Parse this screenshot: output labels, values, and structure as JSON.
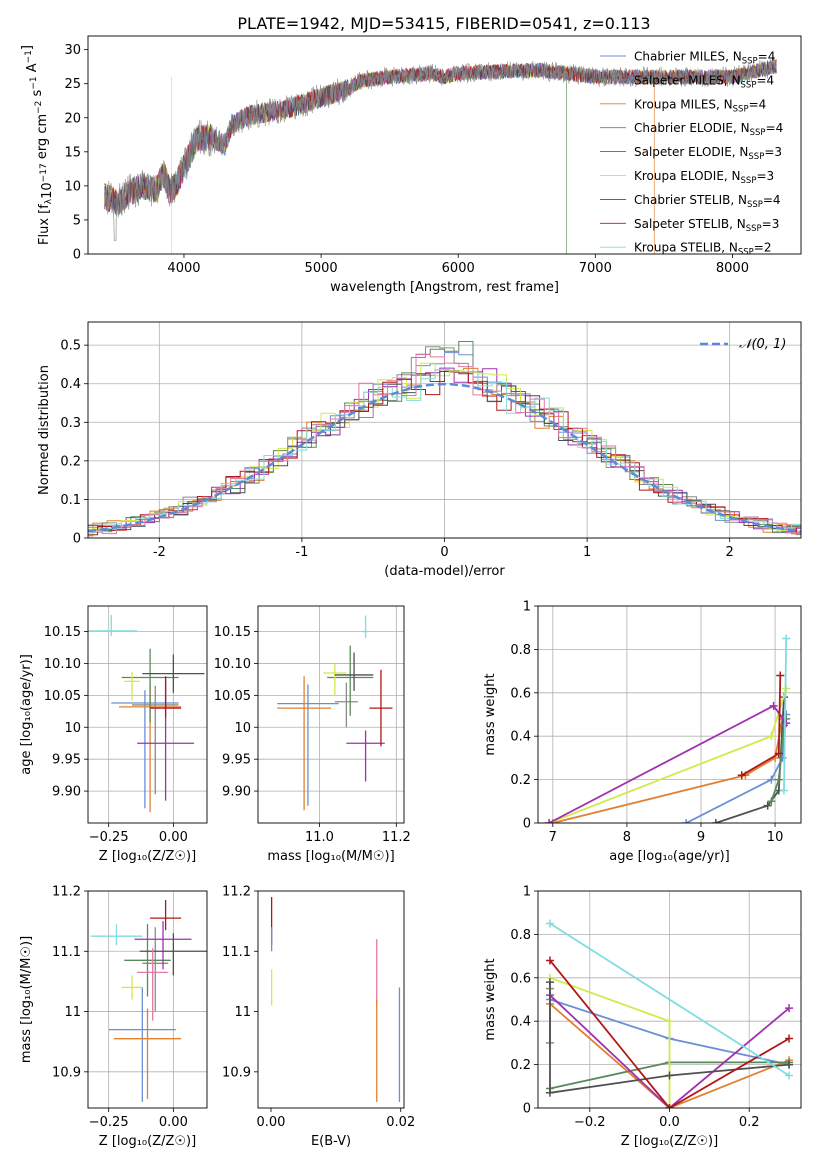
{
  "figure": {
    "title": "PLATE=1942, MJD=53415, FIBERID=0541, z=0.113"
  },
  "series_legend": [
    {
      "name": "Chabrier MILES, N$_{SSP}$=4",
      "base": "Chabrier MILES, N",
      "sub": "SSP",
      "tail": "=4",
      "color": "#6b8fd6"
    },
    {
      "name": "Salpeter MILES, N$_{SSP}$=4",
      "base": "Salpeter MILES, N",
      "sub": "SSP",
      "tail": "=4",
      "color": "#8a8a8a"
    },
    {
      "name": "Kroupa MILES, N$_{SSP}$=4",
      "base": "Kroupa MILES, N",
      "sub": "SSP",
      "tail": "=4",
      "color": "#e08030"
    },
    {
      "name": "Chabrier ELODIE, N$_{SSP}$=4",
      "base": "Chabrier ELODIE, N",
      "sub": "SSP",
      "tail": "=4",
      "color": "#5a8a5a"
    },
    {
      "name": "Salpeter ELODIE, N$_{SSP}$=3",
      "base": "Salpeter ELODIE, N",
      "sub": "SSP",
      "tail": "=3",
      "color": "#a030b0"
    },
    {
      "name": "Kroupa ELODIE, N$_{SSP}$=3",
      "base": "Kroupa ELODIE, N",
      "sub": "SSP",
      "tail": "=3",
      "color": "#d4e84a"
    },
    {
      "name": "Chabrier STELIB, N$_{SSP}$=4",
      "base": "Chabrier STELIB, N",
      "sub": "SSP",
      "tail": "=4",
      "color": "#505050"
    },
    {
      "name": "Salpeter STELIB, N$_{SSP}$=3",
      "base": "Salpeter STELIB, N",
      "sub": "SSP",
      "tail": "=3",
      "color": "#b01818"
    },
    {
      "name": "Kroupa STELIB, N$_{SSP}$=2",
      "base": "Kroupa STELIB, N",
      "sub": "SSP",
      "tail": "=2",
      "color": "#80dce0"
    }
  ],
  "chart_data": [
    {
      "id": "spectrum",
      "type": "line",
      "xlabel": "wavelength [Angstrom, rest frame]",
      "ylabel_parts": [
        "Flux [f",
        "λ",
        "10",
        "−17",
        " erg cm",
        "−2",
        " s",
        "−1",
        " A",
        "−1",
        "]"
      ],
      "xlim": [
        3300,
        8500
      ],
      "ylim": [
        0,
        32
      ],
      "xticks": [
        4000,
        5000,
        6000,
        7000,
        8000
      ],
      "yticks": [
        0,
        5,
        10,
        15,
        20,
        25,
        30
      ],
      "spectrum_knots": [
        [
          3420,
          8.5
        ],
        [
          3520,
          7.5
        ],
        [
          3600,
          9
        ],
        [
          3700,
          10
        ],
        [
          3800,
          9.5
        ],
        [
          3850,
          12
        ],
        [
          3900,
          9
        ],
        [
          3960,
          11
        ],
        [
          4050,
          15
        ],
        [
          4100,
          17
        ],
        [
          4200,
          17
        ],
        [
          4300,
          16
        ],
        [
          4350,
          19
        ],
        [
          4500,
          20.5
        ],
        [
          4700,
          21
        ],
        [
          4861,
          22
        ],
        [
          5000,
          23
        ],
        [
          5175,
          24
        ],
        [
          5300,
          25.5
        ],
        [
          5500,
          26
        ],
        [
          5800,
          26.5
        ],
        [
          5893,
          26
        ],
        [
          6000,
          26.5
        ],
        [
          6300,
          26.8
        ],
        [
          6563,
          27
        ],
        [
          6800,
          26.5
        ],
        [
          7000,
          26
        ],
        [
          7500,
          26
        ],
        [
          8000,
          26
        ],
        [
          8300,
          27.5
        ]
      ],
      "spectrum_end": 8320,
      "drops": [
        {
          "x": 3530,
          "series": 2
        },
        {
          "x": 3910,
          "series": 5
        },
        {
          "x": 6790,
          "series": 3
        },
        {
          "x": 7430,
          "series": 2
        }
      ]
    },
    {
      "id": "residual-histogram",
      "type": "step",
      "xlabel": "(data-model)/error",
      "ylabel": "Normed distribution",
      "xlim": [
        -2.5,
        2.5
      ],
      "ylim": [
        0,
        0.56
      ],
      "xticks": [
        -2,
        -1,
        0,
        1,
        2
      ],
      "yticks": [
        0,
        0.1,
        0.2,
        0.3,
        0.4,
        0.5
      ],
      "grid": true,
      "bin_width": 0.1,
      "reference_curve": {
        "name": "N(0,1)",
        "label_main": "𝒩(0, 1)",
        "color": "#5b8bd8",
        "style": "dashed"
      },
      "legend_position": "upper right",
      "peak_values": [
        0.49,
        0.5,
        0.44,
        0.52,
        0.44,
        0.46,
        0.43,
        0.41,
        0.44
      ]
    },
    {
      "id": "age-vs-Z",
      "type": "errorbar",
      "xlabel": "Z [log₁₀(Z/Z☉)]",
      "ylabel": "age  [log₁₀(age/yr)]",
      "xlim": [
        -0.33,
        0.13
      ],
      "ylim": [
        9.85,
        10.19
      ],
      "xticks": [
        -0.25,
        0.0
      ],
      "xticklabels": [
        "−0.25",
        "0.00"
      ],
      "yticks": [
        9.9,
        9.95,
        10.0,
        10.05,
        10.1,
        10.15
      ],
      "grid": true,
      "points": [
        {
          "s": 0,
          "x": -0.11,
          "xerr": 0.13,
          "y": 10.038,
          "yerr": [
            0.165,
            0.02
          ]
        },
        {
          "s": 1,
          "x": -0.07,
          "xerr": 0.09,
          "y": 10.035,
          "yerr": [
            0.14,
            0.03
          ]
        },
        {
          "s": 2,
          "x": -0.09,
          "xerr": 0.12,
          "y": 10.032,
          "yerr": [
            0.165,
            0.035
          ]
        },
        {
          "s": 3,
          "x": -0.09,
          "xerr": 0.11,
          "y": 10.078,
          "yerr": [
            0.07,
            0.045
          ]
        },
        {
          "s": 4,
          "x": -0.03,
          "xerr": 0.11,
          "y": 9.975,
          "yerr": [
            0.09,
            0.1
          ]
        },
        {
          "s": 5,
          "x": -0.16,
          "xerr": 0.03,
          "y": 10.072,
          "yerr": [
            0.03,
            0.015
          ]
        },
        {
          "s": 6,
          "x": 0.0,
          "xerr": 0.12,
          "y": 10.084,
          "yerr": [
            0.03,
            0.03
          ]
        },
        {
          "s": 7,
          "x": -0.03,
          "xerr": 0.06,
          "y": 10.03,
          "yerr": [
            0.015,
            0.05
          ]
        },
        {
          "s": 8,
          "x": -0.24,
          "xerr": 0.1,
          "y": 10.151,
          "yerr": [
            0.008,
            0.025
          ]
        }
      ]
    },
    {
      "id": "age-vs-mass",
      "type": "errorbar",
      "xlabel": "mass [log₁₀(M/M☉)]",
      "xlim": [
        10.84,
        11.22
      ],
      "ylim": [
        9.85,
        10.19
      ],
      "xticks": [
        11.0,
        11.2
      ],
      "xticklabels": [
        "11.0",
        "11.2"
      ],
      "yticks": [
        9.9,
        9.95,
        10.0,
        10.05,
        10.1,
        10.15
      ],
      "grid": true,
      "points": [
        {
          "s": 0,
          "x": 10.97,
          "xerr": 0.08,
          "y": 10.037,
          "yerr": [
            0.16,
            0.03
          ]
        },
        {
          "s": 1,
          "x": 11.07,
          "xerr": 0.03,
          "y": 10.04,
          "yerr": [
            0.04,
            0.03
          ]
        },
        {
          "s": 2,
          "x": 10.96,
          "xerr": 0.07,
          "y": 10.03,
          "yerr": [
            0.16,
            0.05
          ]
        },
        {
          "s": 3,
          "x": 11.08,
          "xerr": 0.06,
          "y": 10.078,
          "yerr": [
            0.06,
            0.05
          ]
        },
        {
          "s": 4,
          "x": 11.12,
          "xerr": 0.05,
          "y": 9.975,
          "yerr": [
            0.06,
            0.02
          ]
        },
        {
          "s": 5,
          "x": 11.04,
          "xerr": 0.03,
          "y": 10.085,
          "yerr": [
            0.035,
            0.015
          ]
        },
        {
          "s": 6,
          "x": 11.09,
          "xerr": 0.05,
          "y": 10.082,
          "yerr": [
            0.025,
            0.035
          ]
        },
        {
          "s": 7,
          "x": 11.16,
          "xerr": 0.03,
          "y": 10.03,
          "yerr": [
            0.06,
            0.06
          ]
        },
        {
          "s": 8,
          "x": 11.12,
          "xerr": 0.01,
          "y": 10.15,
          "yerr": [
            0.01,
            0.025
          ]
        }
      ]
    },
    {
      "id": "massweight-vs-age",
      "type": "line",
      "xlabel": "age  [log₁₀(age/yr)]",
      "ylabel": "mass weight",
      "xlim": [
        6.8,
        10.35
      ],
      "ylim": [
        0,
        1.0
      ],
      "xticks": [
        7,
        8,
        9,
        10
      ],
      "yticks": [
        0.0,
        0.2,
        0.4,
        0.6,
        0.8,
        1.0
      ],
      "grid": true,
      "series": [
        {
          "s": 2,
          "x": [
            7.0,
            9.6,
            10.0,
            10.1
          ],
          "y": [
            0.0,
            0.22,
            0.3,
            0.48
          ]
        },
        {
          "s": 0,
          "x": [
            8.8,
            9.95,
            10.1,
            10.15
          ],
          "y": [
            0.0,
            0.2,
            0.3,
            0.5
          ]
        },
        {
          "s": 6,
          "x": [
            9.2,
            9.9,
            10.05,
            10.12
          ],
          "y": [
            0.0,
            0.08,
            0.15,
            0.58
          ]
        },
        {
          "s": 3,
          "x": [
            9.95,
            10.05,
            10.12,
            10.15
          ],
          "y": [
            0.1,
            0.2,
            0.45,
            0.48
          ]
        },
        {
          "s": 5,
          "x": [
            6.95,
            9.95,
            10.15
          ],
          "y": [
            0.0,
            0.4,
            0.62
          ]
        },
        {
          "s": 4,
          "x": [
            6.95,
            9.98,
            10.15
          ],
          "y": [
            0.0,
            0.54,
            0.46
          ]
        },
        {
          "s": 7,
          "x": [
            9.55,
            10.05,
            10.07
          ],
          "y": [
            0.22,
            0.32,
            0.68
          ]
        },
        {
          "s": 8,
          "x": [
            10.12,
            10.15
          ],
          "y": [
            0.15,
            0.85
          ]
        }
      ]
    },
    {
      "id": "mass-vs-Z",
      "type": "errorbar",
      "xlabel": "Z [log₁₀(Z/Z☉)]",
      "ylabel": "mass [log₁₀(M/M☉)]",
      "xlim": [
        -0.33,
        0.13
      ],
      "ylim": [
        10.84,
        11.2
      ],
      "xticks": [
        -0.25,
        0.0
      ],
      "xticklabels": [
        "−0.25",
        "0.00"
      ],
      "yticks": [
        10.9,
        11.0,
        11.1,
        11.2
      ],
      "grid": true,
      "points": [
        {
          "s": 0,
          "x": -0.12,
          "xerr": 0.13,
          "y": 10.97,
          "yerr": [
            0.12,
            0.07
          ]
        },
        {
          "s": 1,
          "x": -0.07,
          "xerr": 0.05,
          "y": 11.08,
          "yerr": [
            0.08,
            0.06
          ]
        },
        {
          "s": 2,
          "x": -0.1,
          "xerr": 0.13,
          "y": 10.955,
          "yerr": [
            0.1,
            0.05
          ]
        },
        {
          "s": 3,
          "x": -0.1,
          "xerr": 0.09,
          "y": 11.085,
          "yerr": [
            0.06,
            0.06
          ]
        },
        {
          "s": 4,
          "x": -0.04,
          "xerr": 0.11,
          "y": 11.12,
          "yerr": [
            0.05,
            0.03
          ]
        },
        {
          "s": 5,
          "x": -0.16,
          "xerr": 0.04,
          "y": 11.04,
          "yerr": [
            0.02,
            0.02
          ]
        },
        {
          "s": 6,
          "x": 0.0,
          "xerr": 0.13,
          "y": 11.1,
          "yerr": [
            0.04,
            0.03
          ]
        },
        {
          "s": 7,
          "x": -0.03,
          "xerr": 0.06,
          "y": 11.155,
          "yerr": [
            0.02,
            0.03
          ]
        },
        {
          "s": 8,
          "x": -0.22,
          "xerr": 0.1,
          "y": 11.125,
          "yerr": [
            0.015,
            0.02
          ]
        },
        {
          "s": 9,
          "x": -0.08,
          "xerr": 0.06,
          "y": 11.065,
          "yerr": [
            0.08,
            0.04
          ]
        }
      ]
    },
    {
      "id": "mass-vs-ebv",
      "type": "errorbar",
      "xlabel": "E(B-V)",
      "xlim": [
        -0.002,
        0.0205
      ],
      "ylim": [
        10.84,
        11.2
      ],
      "xticks": [
        0.0,
        0.02
      ],
      "xticklabels": [
        "0.00",
        "0.02"
      ],
      "yticks": [
        10.9,
        11.0,
        11.1,
        11.2
      ],
      "points": [
        {
          "s": 7,
          "x": 0.0001,
          "y": 11.14,
          "yerr": [
            0.03,
            0.05
          ]
        },
        {
          "s": 5,
          "x": 0.0001,
          "y": 11.04,
          "yerr": [
            0.03,
            0.03
          ]
        },
        {
          "s": 0,
          "x": 0.0001,
          "y": 11.12,
          "yerr": [
            0.02,
            0.02
          ]
        },
        {
          "s": 9,
          "x": 0.0163,
          "y": 11.06,
          "yerr": [
            0.05,
            0.06
          ]
        },
        {
          "s": 2,
          "x": 0.0163,
          "y": 10.94,
          "yerr": [
            0.09,
            0.08
          ]
        },
        {
          "s": 0,
          "x": 0.0198,
          "y": 10.95,
          "yerr": [
            0.1,
            0.09
          ]
        }
      ]
    },
    {
      "id": "massweight-vs-Z",
      "type": "line",
      "xlabel": "Z [log₁₀(Z/Z☉)]",
      "ylabel": "mass weight",
      "xlim": [
        -0.33,
        0.33
      ],
      "ylim": [
        0,
        1.0
      ],
      "xticks": [
        -0.2,
        0.0,
        0.2
      ],
      "xticklabels": [
        "−0.2",
        "0.0",
        "0.2"
      ],
      "yticks": [
        0.0,
        0.2,
        0.4,
        0.6,
        0.8,
        1.0
      ],
      "grid": true,
      "series": [
        {
          "s": 0,
          "x": [
            -0.3,
            0.0,
            0.3
          ],
          "y": [
            0.5,
            0.32,
            0.2
          ]
        },
        {
          "s": 1,
          "x": [
            -0.3,
            -0.3
          ],
          "y": [
            0.55,
            0.3
          ]
        },
        {
          "s": 2,
          "x": [
            -0.3,
            0.0,
            0.3
          ],
          "y": [
            0.48,
            0.0,
            0.22
          ]
        },
        {
          "s": 3,
          "x": [
            -0.3,
            0.0,
            0.3
          ],
          "y": [
            0.09,
            0.21,
            0.21
          ]
        },
        {
          "s": 4,
          "x": [
            -0.3,
            0.0,
            0.3
          ],
          "y": [
            0.52,
            0.0,
            0.46
          ]
        },
        {
          "s": 5,
          "x": [
            -0.3,
            0.0,
            0.0
          ],
          "y": [
            0.6,
            0.4,
            0.0
          ]
        },
        {
          "s": 6,
          "x": [
            -0.3,
            -0.3,
            0.0,
            0.3
          ],
          "y": [
            0.58,
            0.07,
            0.15,
            0.2
          ]
        },
        {
          "s": 7,
          "x": [
            -0.3,
            0.0,
            0.3
          ],
          "y": [
            0.68,
            0.0,
            0.32
          ]
        },
        {
          "s": 8,
          "x": [
            -0.3,
            0.3
          ],
          "y": [
            0.85,
            0.15
          ]
        }
      ]
    }
  ],
  "extra_colors": [
    "#e27aa8"
  ]
}
